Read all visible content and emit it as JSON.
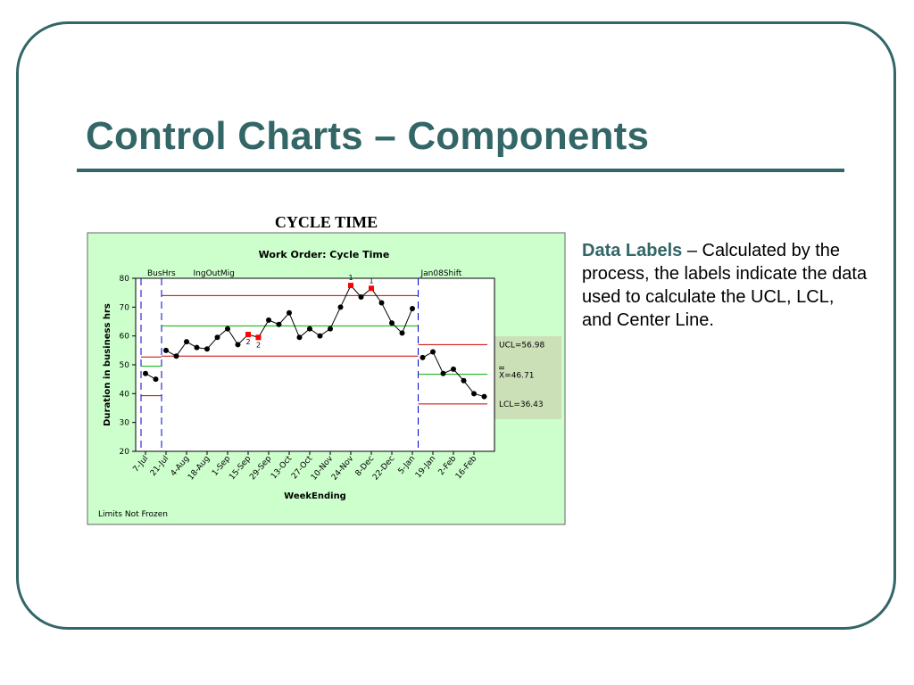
{
  "slide": {
    "title": "Control Charts – Components",
    "chart_caption": "CYCLE TIME",
    "side_text_heading": "Data Labels",
    "side_text_body": "– Calculated by the process, the labels indicate the data used to calculate the UCL, LCL, and Center Line."
  },
  "colors": {
    "theme": "#336666",
    "chart_bg": "#ccffcc",
    "limits_bg": "#cce0b8",
    "limit_line": "#cc0000",
    "center_line": "#00b000",
    "phase_line": "#0000cc",
    "flagged_point": "#ff0000"
  },
  "chart_data": {
    "type": "line",
    "title": "Work Order: Cycle Time",
    "xlabel": "WeekEnding",
    "ylabel": "Duration in business hrs",
    "ylim": [
      20,
      80
    ],
    "yticks": [
      20,
      30,
      40,
      50,
      60,
      70,
      80
    ],
    "x_tick_labels": [
      "7-Jul",
      "21-Jul",
      "4-Aug",
      "18-Aug",
      "1-Sep",
      "15-Sep",
      "29-Sep",
      "13-Oct",
      "27-Oct",
      "10-Nov",
      "24-Nov",
      "8-Dec",
      "22-Dec",
      "5-Jan",
      "19-Jan",
      "2-Feb",
      "16-Feb"
    ],
    "footnote": "Limits Not Frozen",
    "limits_box": {
      "ucl": "UCL=56.98",
      "center": "X=46.71",
      "lcl": "LCL=36.43"
    },
    "phases": [
      {
        "name": "BusHrs",
        "start": 0,
        "end": 2,
        "values": [
          47,
          45
        ],
        "ucl": 52.7,
        "center": 49.5,
        "lcl": 39.3,
        "flags": []
      },
      {
        "name": "IngOutMig",
        "start": 2,
        "end": 27,
        "values": [
          55,
          53,
          58,
          56,
          55.5,
          59.5,
          62.5,
          57,
          60.5,
          59.5,
          65.5,
          64,
          68,
          59.5,
          62.5,
          60,
          62.5,
          70,
          77.5,
          73.5,
          76.5,
          71.5,
          64.5,
          61,
          69.5
        ],
        "ucl": 74,
        "center": 63.5,
        "lcl": 53,
        "flags": [
          {
            "i": 8,
            "label": "2"
          },
          {
            "i": 9,
            "label": "2"
          },
          {
            "i": 18,
            "label": "1"
          },
          {
            "i": 20,
            "label": "1"
          }
        ]
      },
      {
        "name": "Jan08Shift",
        "start": 27,
        "end": 34,
        "values": [
          52.5,
          54.5,
          47,
          48.5,
          44.5,
          40,
          39
        ],
        "ucl": 56.98,
        "center": 46.71,
        "lcl": 36.43,
        "flags": []
      }
    ]
  }
}
